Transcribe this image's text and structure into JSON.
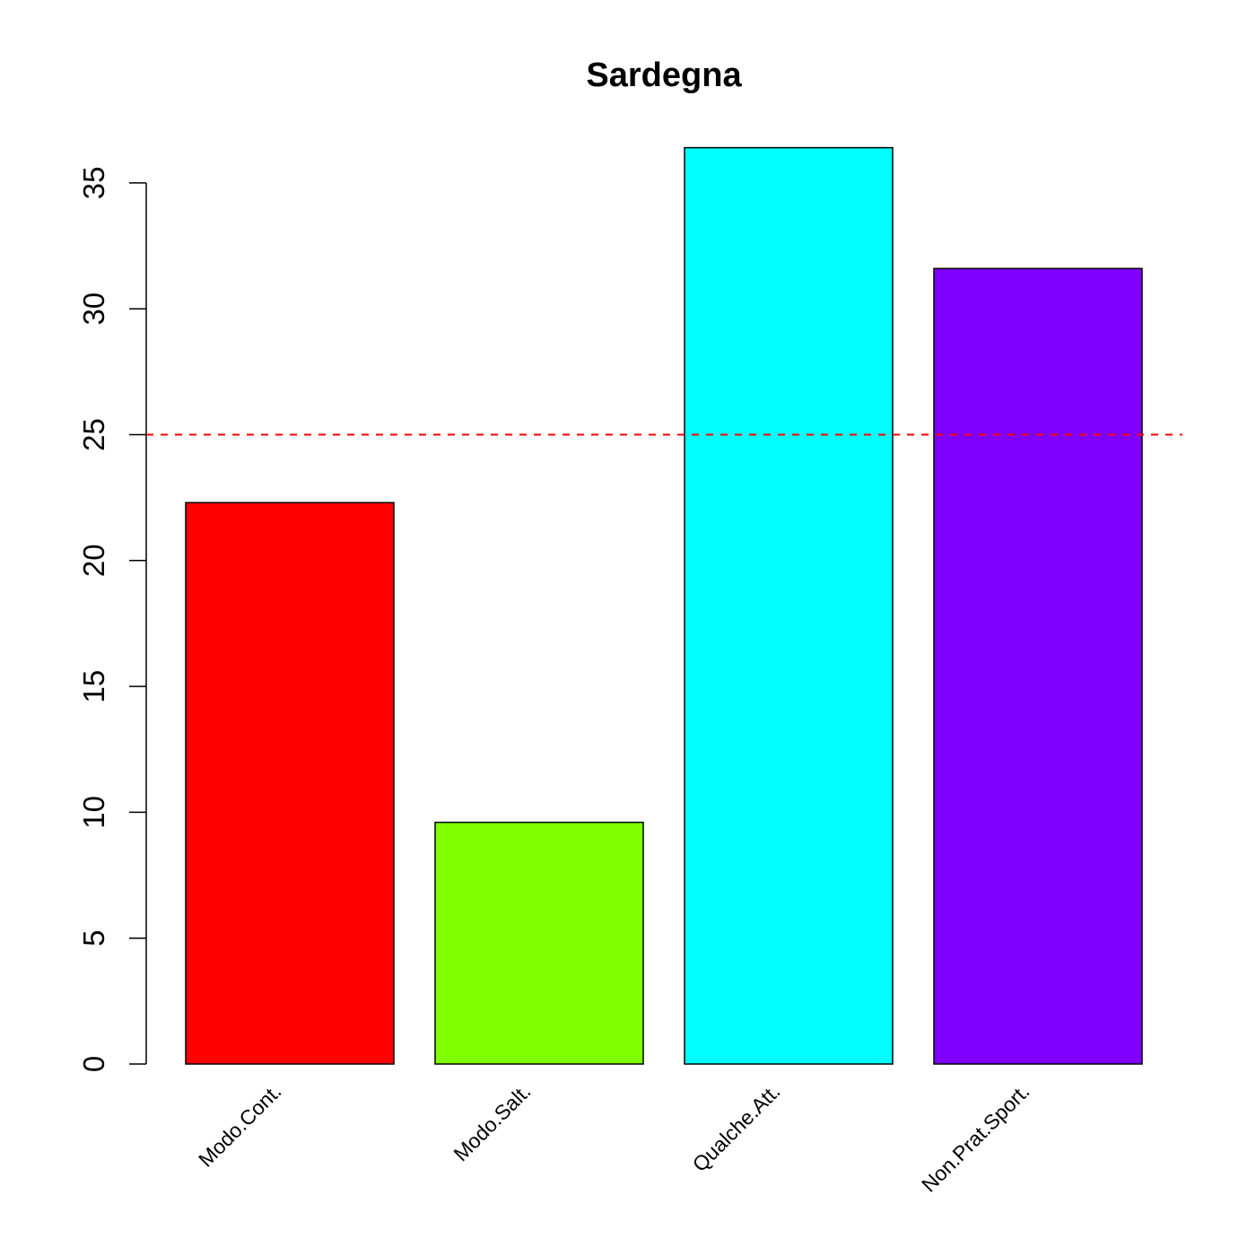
{
  "chart_data": {
    "type": "bar",
    "title": "Sardegna",
    "xlabel": "",
    "ylabel": "",
    "categories": [
      "Modo.Cont.",
      "Modo.Salt.",
      "Qualche.Att.",
      "Non.Prat.Sport."
    ],
    "values": [
      22.3,
      9.6,
      36.4,
      31.6
    ],
    "colors": [
      "#FF0000",
      "#80FF00",
      "#00FFFF",
      "#8000FF"
    ],
    "ylim": [
      0,
      35
    ],
    "yticks": [
      0,
      5,
      10,
      15,
      20,
      25,
      30,
      35
    ],
    "reference_line": {
      "value": 25,
      "color": "#FF0000",
      "style": "dashed"
    },
    "grid": false,
    "legend": "none"
  }
}
